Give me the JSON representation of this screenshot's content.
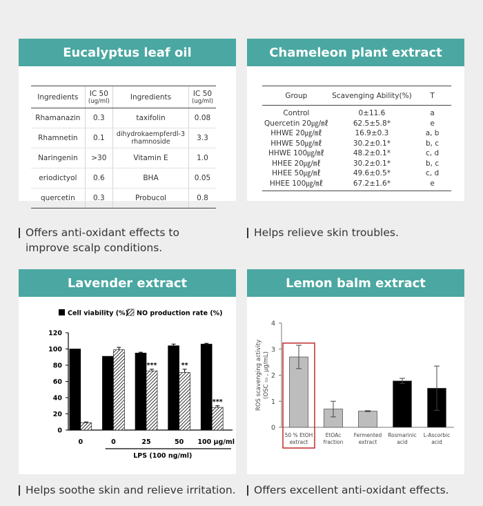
{
  "colors": {
    "header_bg": "#4aa7a1",
    "header_text": "#ffffff",
    "page_bg": "#eeeeee",
    "highlight_box": "#c0282c"
  },
  "card1": {
    "title": "Eucalyptus leaf oil",
    "table": {
      "headers": [
        "Ingredients",
        "IC 50",
        "(ug/ml)",
        "Ingredients",
        "IC 50",
        "(ug/ml)"
      ],
      "rows": [
        [
          "Rhamanazin",
          "0.3",
          "taxifolin",
          "0.08"
        ],
        [
          "Rhamnetin",
          "0.1",
          "dihydrokaempferdl-3 rhamnoside",
          "3.3"
        ],
        [
          "Naringenin",
          ">30",
          "Vitamin E",
          "1.0"
        ],
        [
          "eriodictyol",
          "0.6",
          "BHA",
          "0.05"
        ],
        [
          "quercetin",
          "0.3",
          "Probucol",
          "0.8"
        ]
      ]
    },
    "caption_line1": "Offers anti-oxidant effects to",
    "caption_line2": "improve scalp conditions."
  },
  "card2": {
    "title": "Chameleon plant extract",
    "table": {
      "headers": [
        "Group",
        "Scavenging Ability(%)",
        "T"
      ],
      "rows": [
        [
          "Control",
          "0±11.6",
          "a"
        ],
        [
          "Quercetin 20㎍/㎖",
          "62.5±5.8*",
          "e"
        ],
        [
          "HHWE 20㎍/㎖",
          "16.9±0.3",
          "a, b"
        ],
        [
          "HHWE 50㎍/㎖",
          "30.2±0.1*",
          "b, c"
        ],
        [
          "HHWE 100㎍/㎖",
          "48.2±0.1*",
          "c, d"
        ],
        [
          "HHEE 20㎍/㎖",
          "30.2±0.1*",
          "b, c"
        ],
        [
          "HHEE 50㎍/㎖",
          "49.6±0.5*",
          "c, d"
        ],
        [
          "HHEE 100㎍/㎖",
          "67.2±1.6*",
          "e"
        ]
      ]
    },
    "caption": "Helps relieve skin troubles."
  },
  "card3": {
    "title": "Lavender extract",
    "caption": "Helps soothe skin and relieve irritation."
  },
  "card4": {
    "title": "Lemon balm extract",
    "caption": "Offers excellent anti-oxidant effects."
  },
  "chart_data": [
    {
      "type": "bar",
      "categories": [
        "0",
        "0",
        "25",
        "50",
        "100 μg/ml"
      ],
      "xgroup_label": "LPS (100 ng/ml)",
      "series": [
        {
          "name": "Cell viability (%)",
          "color": "#000000",
          "values": [
            100,
            91,
            95,
            104,
            106
          ],
          "errors": [
            0,
            0,
            1,
            2,
            1
          ],
          "significance": [
            "",
            "",
            "",
            "",
            ""
          ]
        },
        {
          "name": "NO production rate (%)",
          "color": "hatched",
          "values": [
            9,
            99,
            73,
            71,
            28
          ],
          "errors": [
            1,
            3,
            2,
            4,
            2
          ],
          "significance": [
            "",
            "",
            "***",
            "**",
            "***"
          ]
        }
      ],
      "ylim": [
        0,
        120
      ],
      "yticks": [
        "0",
        "20",
        "40",
        "60",
        "80",
        "100",
        "120"
      ],
      "legend": "top"
    },
    {
      "type": "bar",
      "categories": [
        [
          "50 % EtOH",
          "extract"
        ],
        [
          "EtOAc",
          "fraction"
        ],
        [
          "Fermented",
          "extract"
        ],
        [
          "Rosmarinic",
          "acid"
        ],
        [
          "L-Ascorbic",
          "acid"
        ]
      ],
      "values": [
        2.7,
        0.7,
        0.62,
        1.78,
        1.5
      ],
      "errors": [
        0.45,
        0.3,
        0.02,
        0.1,
        0.85
      ],
      "colors": [
        "#bdbdbd",
        "#bdbdbd",
        "#bdbdbd",
        "#000000",
        "#000000"
      ],
      "ylabel_line1": "ROS scavenging activity",
      "ylabel_line2": "(OSC ₅₀ , μg/mL)",
      "ylim": [
        0,
        4
      ],
      "yticks": [
        "0",
        "1",
        "2",
        "3",
        "4"
      ],
      "highlighted_index": 0
    }
  ]
}
